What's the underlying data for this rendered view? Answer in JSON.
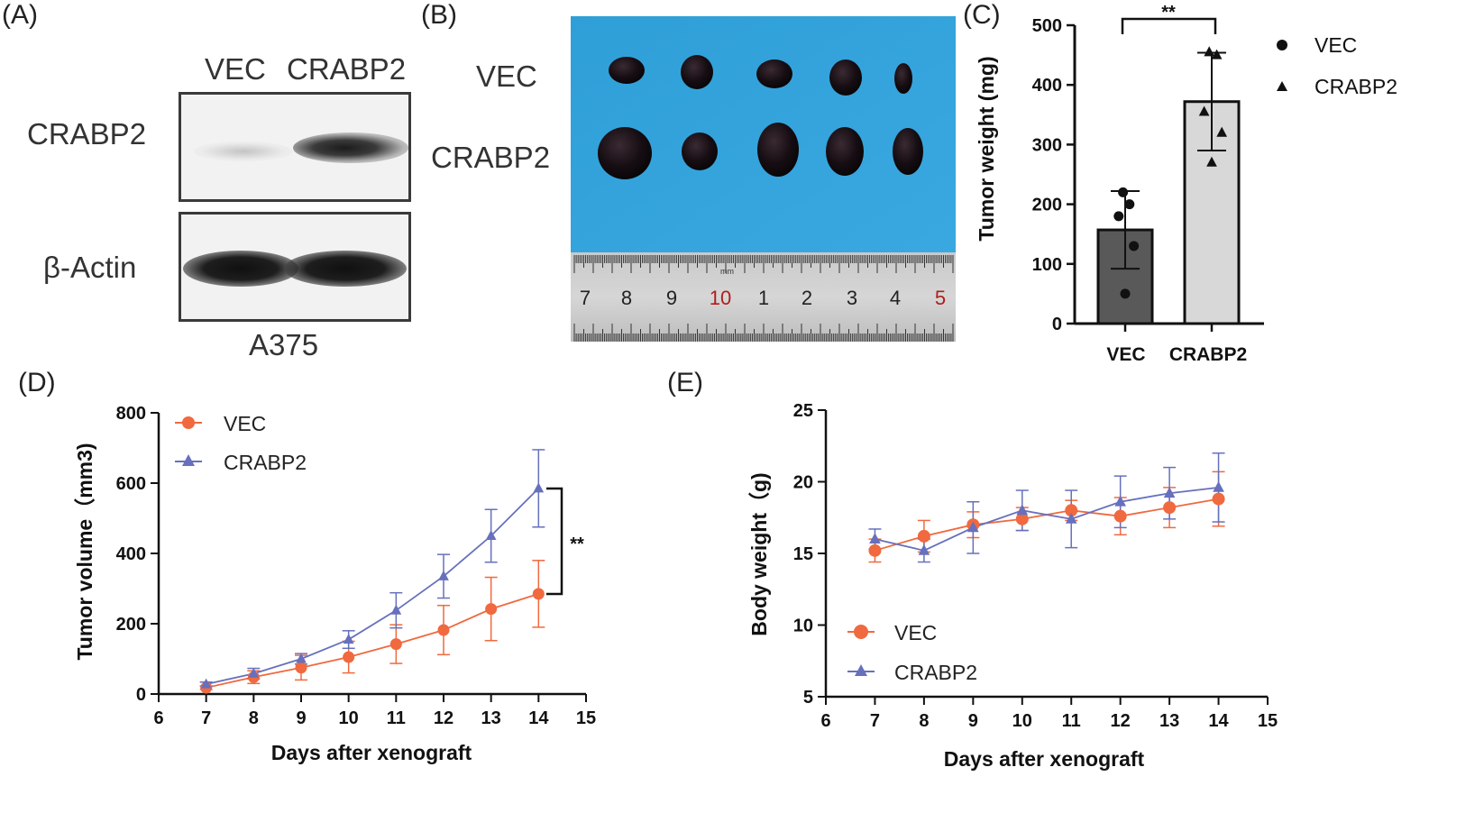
{
  "panels": {
    "a": {
      "label": "(A)",
      "lanes": [
        "VEC",
        "CRABP2"
      ],
      "rows": [
        "CRABP2",
        "β-Actin"
      ],
      "cell_line": "A375"
    },
    "b": {
      "label": "(B)",
      "rows": [
        "VEC",
        "CRABP2"
      ],
      "ruler_numbers": [
        "7",
        "8",
        "9",
        "10",
        "1",
        "2",
        "3",
        "4",
        "5"
      ],
      "ruler_unit": "mm"
    }
  },
  "chart_data": [
    {
      "id": "C",
      "label": "(C)",
      "type": "bar",
      "categories": [
        "VEC",
        "CRABP2"
      ],
      "values": [
        157,
        372
      ],
      "errors": [
        65,
        82
      ],
      "points": [
        [
          220,
          200,
          180,
          130,
          50
        ],
        [
          455,
          450,
          355,
          320,
          270
        ]
      ],
      "markers": [
        "circle",
        "triangle"
      ],
      "colors": [
        "#595959",
        "#d8d8d8"
      ],
      "ylabel": "Tumor weight (mg)",
      "ylim": [
        0,
        500
      ],
      "yticks": [
        0,
        100,
        200,
        300,
        400,
        500
      ],
      "legend": [
        "VEC",
        "CRABP2"
      ],
      "significance": "**"
    },
    {
      "id": "D",
      "label": "(D)",
      "type": "line",
      "x": [
        7,
        8,
        9,
        10,
        11,
        12,
        13,
        14
      ],
      "series": [
        {
          "name": "VEC",
          "color": "#f0693f",
          "marker": "circle",
          "values": [
            18,
            48,
            75,
            105,
            142,
            182,
            242,
            285
          ],
          "errors": [
            5,
            18,
            35,
            45,
            55,
            70,
            90,
            95
          ]
        },
        {
          "name": "CRABP2",
          "color": "#6670bd",
          "marker": "triangle",
          "values": [
            28,
            58,
            100,
            155,
            238,
            335,
            450,
            585
          ],
          "errors": [
            6,
            15,
            15,
            25,
            50,
            62,
            75,
            110
          ]
        }
      ],
      "xlabel": "Days after xenograft",
      "ylabel": "Tumor volume（mm3)",
      "xlim": [
        6,
        15
      ],
      "ylim": [
        0,
        800
      ],
      "xticks": [
        6,
        7,
        8,
        9,
        10,
        11,
        12,
        13,
        14,
        15
      ],
      "yticks": [
        0,
        200,
        400,
        600,
        800
      ],
      "significance": "**"
    },
    {
      "id": "E",
      "label": "(E)",
      "type": "line",
      "x": [
        7,
        8,
        9,
        10,
        11,
        12,
        13,
        14
      ],
      "series": [
        {
          "name": "VEC",
          "color": "#f0693f",
          "marker": "circle",
          "values": [
            15.2,
            16.2,
            17.0,
            17.4,
            18.0,
            17.6,
            18.2,
            18.8
          ],
          "errors": [
            0.8,
            1.1,
            0.9,
            0.8,
            0.7,
            1.3,
            1.4,
            1.9
          ]
        },
        {
          "name": "CRABP2",
          "color": "#6670bd",
          "marker": "triangle",
          "values": [
            16.0,
            15.2,
            16.8,
            18.0,
            17.4,
            18.6,
            19.2,
            19.6
          ],
          "errors": [
            0.7,
            0.8,
            1.8,
            1.4,
            2.0,
            1.8,
            1.8,
            2.4
          ]
        }
      ],
      "xlabel": "Days after xenograft",
      "ylabel": "Body weight（g)",
      "xlim": [
        6,
        15
      ],
      "ylim": [
        5,
        25
      ],
      "xticks": [
        6,
        7,
        8,
        9,
        10,
        11,
        12,
        13,
        14,
        15
      ],
      "yticks": [
        5,
        10,
        15,
        20,
        25
      ]
    }
  ]
}
